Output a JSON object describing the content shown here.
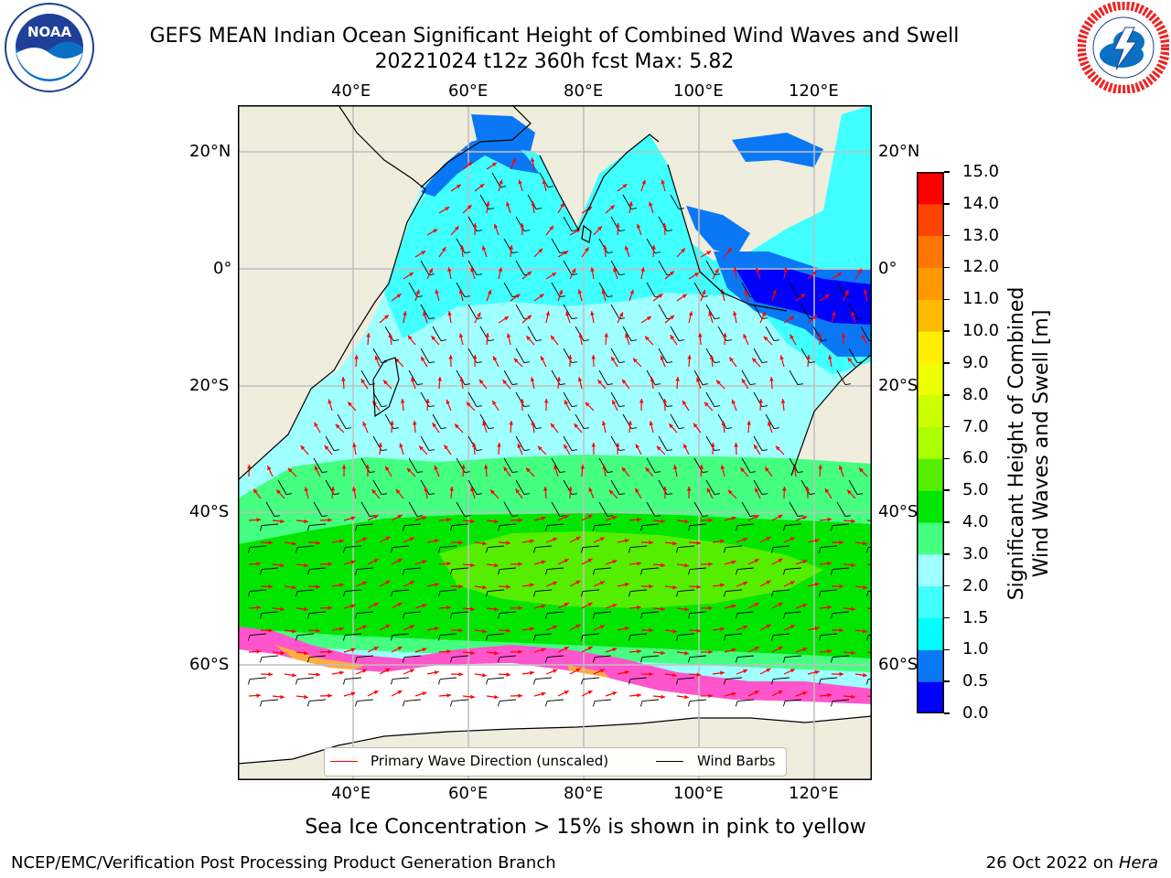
{
  "header": {
    "title_line1": "GEFS MEAN Indian Ocean Significant Height of Combined Wind Waves and Swell",
    "title_line2": "20221024 t12z 360h fcst   Max: 5.82"
  },
  "logos": {
    "noaa_text": "NOAA",
    "nws_icon": "national-weather-service-logo"
  },
  "map": {
    "lon_labels": [
      "40°E",
      "60°E",
      "80°E",
      "100°E",
      "120°E"
    ],
    "lat_labels": [
      "20°N",
      "0°",
      "20°S",
      "40°S",
      "60°S"
    ],
    "extent": {
      "lon": [
        20,
        130
      ],
      "lat": [
        -74,
        28
      ]
    },
    "land_color": "#efedde",
    "grid_color": "#bfbfbf",
    "wave_arrow_color": "#ff0000",
    "wind_barb_color": "#000000"
  },
  "legend": {
    "wave_label": "Primary Wave Direction (unscaled)",
    "wind_label": "Wind Barbs"
  },
  "colorbar": {
    "label_line1": "Significant Height of Combined",
    "label_line2": "Wind Waves and Swell [m]",
    "ticks": [
      "0.0",
      "0.5",
      "1.0",
      "1.5",
      "2.0",
      "3.0",
      "4.0",
      "5.0",
      "6.0",
      "7.0",
      "8.0",
      "9.0",
      "10.0",
      "11.0",
      "12.0",
      "13.0",
      "14.0",
      "15.0"
    ],
    "colors": [
      "#0000ff",
      "#0a78f5",
      "#00ffff",
      "#40ffff",
      "#a0ffff",
      "#44ff80",
      "#00e600",
      "#55ee00",
      "#aaff00",
      "#ccff00",
      "#eeff00",
      "#ffee00",
      "#ffbb00",
      "#ff9900",
      "#ff7700",
      "#ff4400",
      "#ff0000"
    ]
  },
  "caption": "Sea Ice Concentration > 15% is shown in pink to yellow",
  "footer": {
    "left": "NCEP/EMC/Verification Post Processing Product Generation Branch",
    "right_prefix": "26 Oct 2022 on ",
    "right_host": "Hera"
  }
}
